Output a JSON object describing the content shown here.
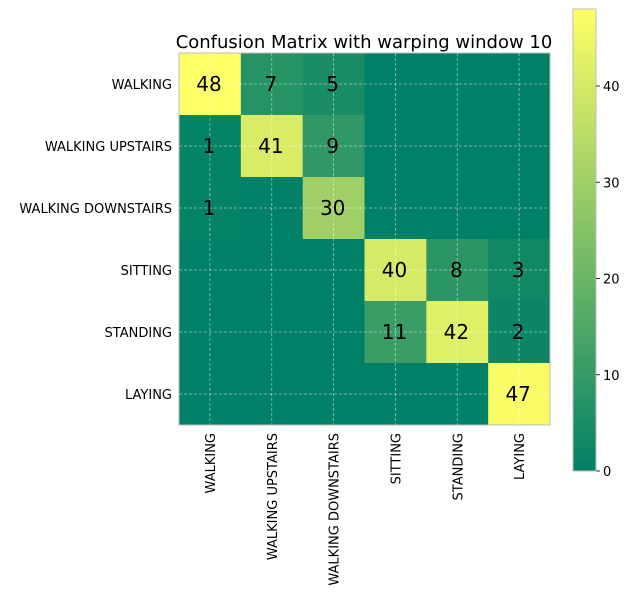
{
  "chart_data": {
    "type": "heatmap",
    "title": "Confusion Matrix with warping window 10",
    "row_labels": [
      "WALKING",
      "WALKING UPSTAIRS",
      "WALKING DOWNSTAIRS",
      "SITTING",
      "STANDING",
      "LAYING"
    ],
    "col_labels": [
      "WALKING",
      "WALKING UPSTAIRS",
      "WALKING DOWNSTAIRS",
      "SITTING",
      "STANDING",
      "LAYING"
    ],
    "values": [
      [
        48,
        7,
        5,
        0,
        0,
        0
      ],
      [
        1,
        41,
        9,
        0,
        0,
        0
      ],
      [
        1,
        0,
        30,
        0,
        0,
        0
      ],
      [
        0,
        0,
        0,
        40,
        8,
        3
      ],
      [
        0,
        0,
        0,
        11,
        42,
        2
      ],
      [
        0,
        0,
        0,
        0,
        0,
        47
      ]
    ],
    "display_labels": [
      [
        "48",
        "7",
        "5",
        "",
        "",
        ""
      ],
      [
        "1",
        "41",
        "9",
        "",
        "",
        ""
      ],
      [
        "1",
        "",
        "30",
        "",
        "",
        ""
      ],
      [
        "",
        "",
        "",
        "40",
        "8",
        "3"
      ],
      [
        "",
        "",
        "",
        "11",
        "42",
        "2"
      ],
      [
        "",
        "",
        "",
        "",
        "",
        "47"
      ]
    ],
    "colorbar": {
      "min": 0,
      "max": 48,
      "ticks": [
        0,
        10,
        20,
        30,
        40
      ],
      "colormap": "summer",
      "color_low": "#008066",
      "color_high": "#ffff66"
    },
    "grid": true
  }
}
